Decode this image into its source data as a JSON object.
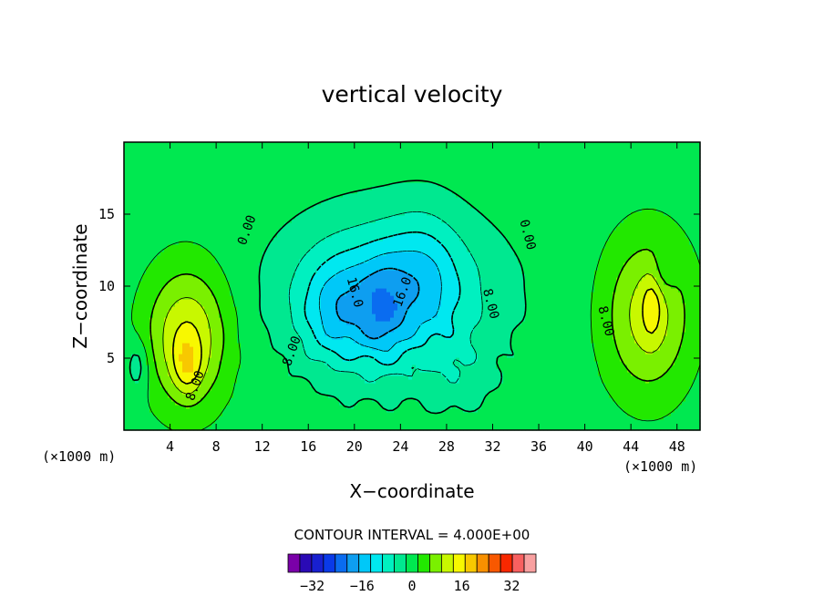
{
  "chart_data": {
    "type": "contour",
    "title": "vertical velocity",
    "xlabel": "X−coordinate",
    "ylabel": "Z−coordinate",
    "x_unit_label": "(×1000 m)",
    "z_unit_label": "(×1000 m)",
    "xlim": [
      0,
      50
    ],
    "ylim": [
      0,
      20
    ],
    "x_ticks": [
      4,
      8,
      12,
      16,
      20,
      24,
      28,
      32,
      36,
      40,
      44,
      48
    ],
    "x_tick_labels": [
      "4",
      "8",
      "12",
      "16",
      "20",
      "24",
      "28",
      "32",
      "36",
      "40",
      "44",
      "48"
    ],
    "y_ticks": [
      5,
      10,
      15
    ],
    "y_tick_labels": [
      "5",
      "10",
      "15"
    ],
    "contour_interval_label": "CONTOUR INTERVAL = 4.000E+00",
    "contour_interval": 4,
    "contour_labels": [
      {
        "text": "0.00",
        "x": 11.0,
        "z": 13.8
      },
      {
        "text": "0.00",
        "x": 34.7,
        "z": 13.5
      },
      {
        "text": "8.00",
        "x": 6.5,
        "z": 3.0
      },
      {
        "text": "8.00",
        "x": 41.5,
        "z": 7.5
      },
      {
        "text": "8.00",
        "x": 14.9,
        "z": 5.4
      },
      {
        "text": "16.0",
        "x": 19.7,
        "z": 9.5
      },
      {
        "text": "16.0",
        "x": 24.5,
        "z": 9.5
      },
      {
        "text": "8.00",
        "x": 31.5,
        "z": 8.7
      }
    ],
    "colorbar": {
      "levels": [
        -36,
        -32,
        -28,
        -24,
        -20,
        -16,
        -12,
        -8,
        -4,
        0,
        4,
        8,
        12,
        16,
        20,
        24,
        28,
        32,
        36
      ],
      "colors": [
        "#7a00a8",
        "#2a0ab5",
        "#1820d0",
        "#0a3ae8",
        "#0a6cf0",
        "#0e9ef0",
        "#00c8f8",
        "#00e8f0",
        "#00f0c0",
        "#00e890",
        "#00e850",
        "#22e800",
        "#7af000",
        "#c8f800",
        "#f8f800",
        "#f8c800",
        "#f89000",
        "#f85800",
        "#f82800",
        "#f86060",
        "#f8a0a0"
      ],
      "tick_values": [
        -32,
        -16,
        0,
        16,
        32
      ],
      "tick_labels": [
        "−32",
        "−16",
        "0",
        "16",
        "32"
      ]
    }
  }
}
